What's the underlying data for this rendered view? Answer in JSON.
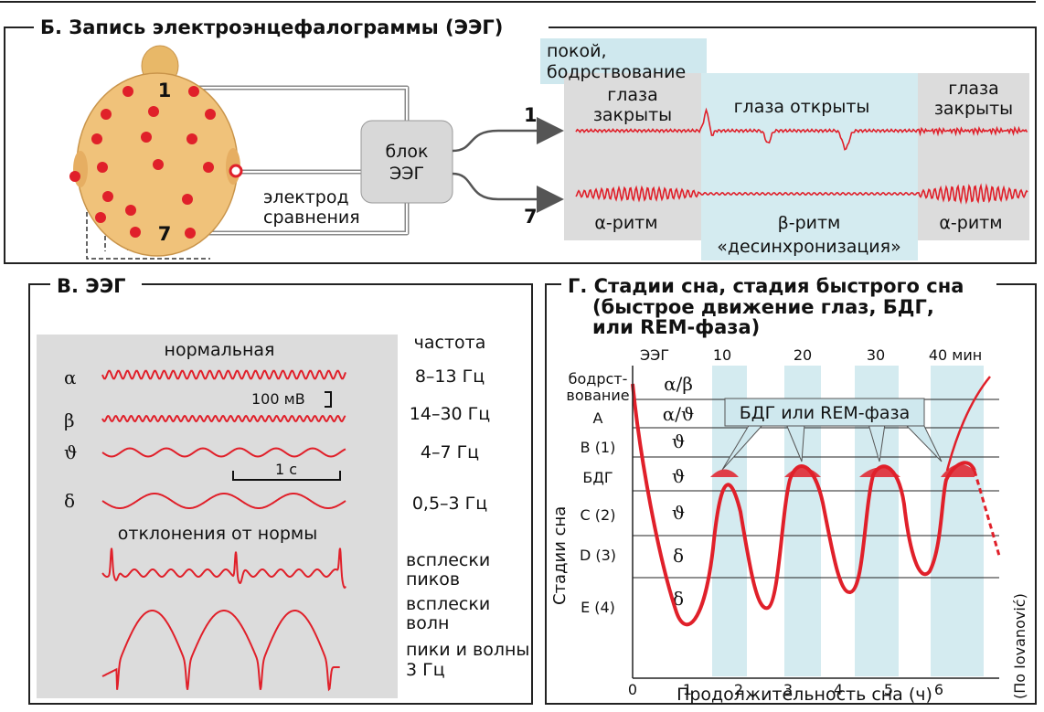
{
  "panel_b": {
    "title": "Б. Запись электроэнцефалограммы (ЭЭГ)",
    "rest_label_1": "покой,",
    "rest_label_2": "бодрствование",
    "eyes_closed_left_1": "глаза",
    "eyes_closed_left_2": "закрыты",
    "eyes_open": "глаза открыты",
    "eyes_closed_right_1": "глаза",
    "eyes_closed_right_2": "закрыты",
    "electrode_1": "1",
    "electrode_7": "7",
    "channel_1": "1",
    "channel_7": "7",
    "block_1": "блок",
    "block_2": "ЭЭГ",
    "ref_electrode_1": "электрод",
    "ref_electrode_2": "сравнения",
    "alpha_left": "α-ритм",
    "beta": "β-ритм",
    "desync": "«десинхронизация»",
    "alpha_right": "α-ритм",
    "colors": {
      "electrode": "#e0202a",
      "head": "#f0c27a",
      "highlight_blue": "#cfe8ee",
      "highlight_gray": "#dcdcdc"
    }
  },
  "panel_v": {
    "title": "В. ЭЭГ",
    "normal": "нормальная",
    "frequency": "частота",
    "scale_v": "100 мВ",
    "scale_t": "1 с",
    "abnormal": "отклонения от нормы",
    "rhythms": [
      {
        "symbol": "α",
        "freq": "8–13 Гц"
      },
      {
        "symbol": "β",
        "freq": "14–30 Гц"
      },
      {
        "symbol": "ϑ",
        "freq": "4–7 Гц"
      },
      {
        "symbol": "δ",
        "freq": "0,5–3 Гц"
      }
    ],
    "abnormal_labels": [
      {
        "l1": "всплески",
        "l2": "пиков"
      },
      {
        "l1": "всплески",
        "l2": "волн"
      },
      {
        "l1": "пики и волны",
        "l2": "3 Гц"
      }
    ]
  },
  "panel_g": {
    "title_1": "Г. Стадии сна, стадия быстрого сна",
    "title_2": "(быстрое движение глаз, БДГ,",
    "title_3": "или REM-фаза)",
    "eeg_label": "ЭЭГ",
    "minute_ticks": [
      "10",
      "20",
      "30",
      "40 мин"
    ],
    "stages": [
      {
        "label": "бодрст-",
        "label2": "вование",
        "eeg": "α/β"
      },
      {
        "label": "A",
        "eeg": "α/ϑ"
      },
      {
        "label": "B (1)",
        "eeg": "ϑ"
      },
      {
        "label": "БДГ",
        "eeg": "ϑ"
      },
      {
        "label": "C (2)",
        "eeg": "ϑ"
      },
      {
        "label": "D (3)",
        "eeg": "δ"
      },
      {
        "label": "E (4)",
        "eeg": "δ"
      }
    ],
    "rem_label": "БДГ или REM-фаза",
    "ylabel": "Стадии сна",
    "xlabel": "Продолжительность сна (ч)",
    "x_ticks": [
      "0",
      "1",
      "2",
      "3",
      "4",
      "5",
      "6"
    ],
    "source": "(По Iovanović)"
  }
}
